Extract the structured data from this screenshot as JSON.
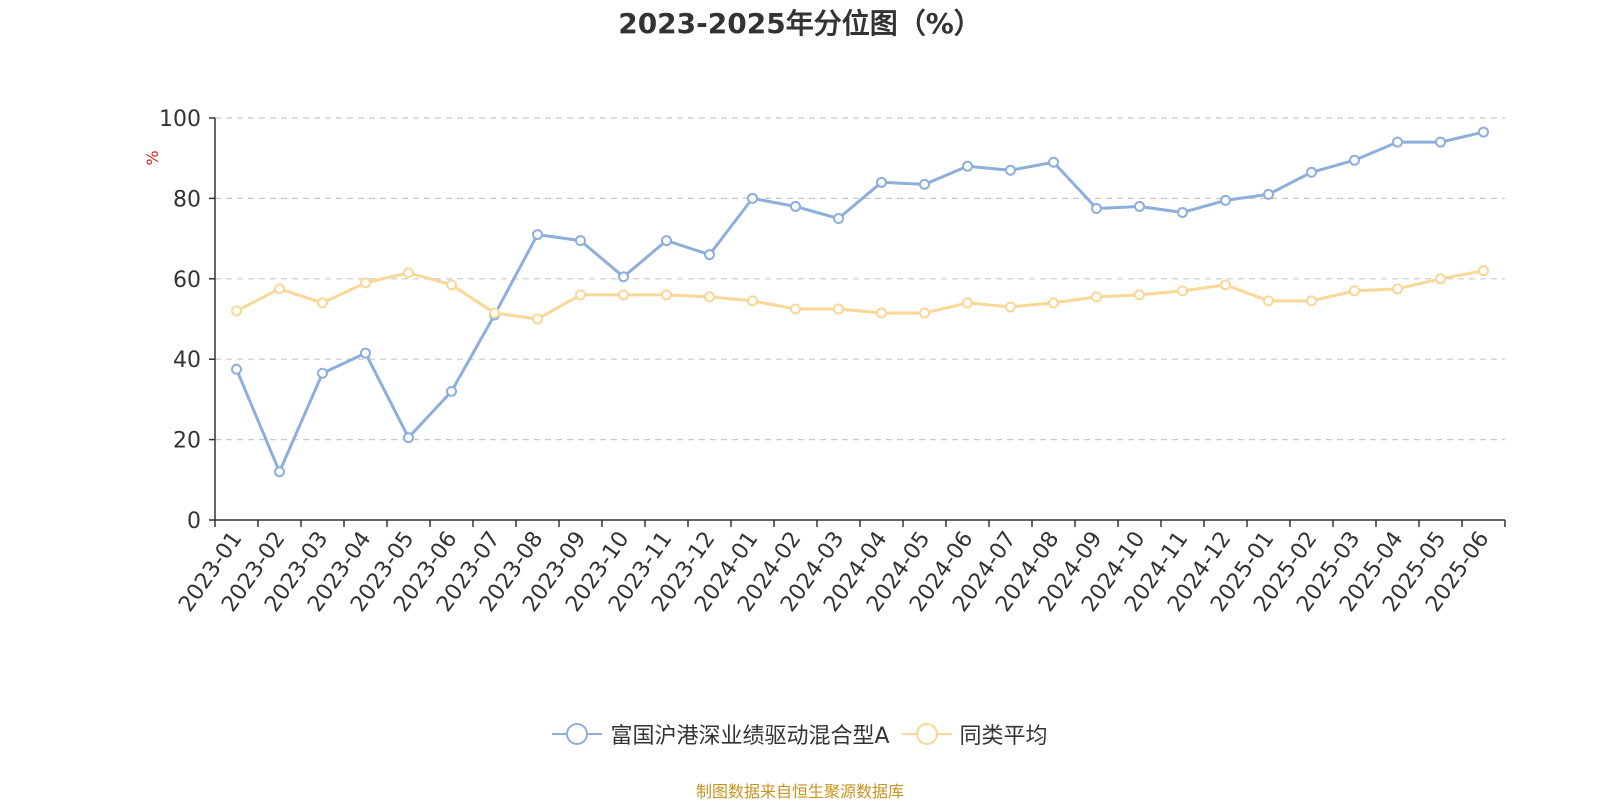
{
  "chart_data": {
    "type": "line",
    "title": "2023-2025年分位图（%）",
    "ylabel": "%",
    "ylim": [
      0,
      100
    ],
    "yticks": [
      "0",
      "20",
      "40",
      "60",
      "80",
      "100"
    ],
    "grid": true,
    "legend_position": "bottom-center",
    "categories": [
      "2023-01",
      "2023-02",
      "2023-03",
      "2023-04",
      "2023-05",
      "2023-06",
      "2023-07",
      "2023-08",
      "2023-09",
      "2023-10",
      "2023-11",
      "2023-12",
      "2024-01",
      "2024-02",
      "2024-03",
      "2024-04",
      "2024-05",
      "2024-06",
      "2024-07",
      "2024-08",
      "2024-09",
      "2024-10",
      "2024-11",
      "2024-12",
      "2025-01",
      "2025-02",
      "2025-03",
      "2025-04",
      "2025-05",
      "2025-06"
    ],
    "series": [
      {
        "name": "富国沪港深业绩驱动混合型A",
        "color": "#8eaedb",
        "values": [
          37.5,
          12,
          36.5,
          41.5,
          20.5,
          32,
          51,
          71,
          69.5,
          60.5,
          69.5,
          66,
          80,
          78,
          75,
          84,
          83.5,
          88,
          87,
          89,
          77.5,
          78,
          76.5,
          79.5,
          81,
          86.5,
          89.5,
          94,
          94,
          96.5
        ]
      },
      {
        "name": "同类平均",
        "color": "#fad797",
        "values": [
          52,
          57.5,
          54,
          59,
          61.5,
          58.5,
          51.5,
          50,
          56,
          56,
          56,
          55.5,
          54.5,
          52.5,
          52.5,
          51.5,
          51.5,
          54,
          53,
          54,
          55.5,
          56,
          57,
          58.5,
          54.5,
          54.5,
          57,
          57.5,
          60,
          62
        ]
      }
    ]
  },
  "source_note": "制图数据来自恒生聚源数据库"
}
